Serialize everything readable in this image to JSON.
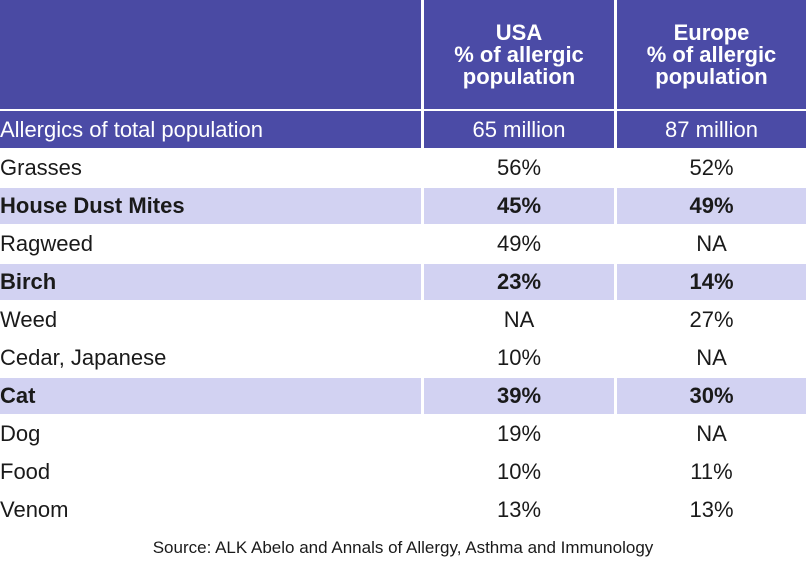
{
  "table": {
    "header": {
      "usa_line1": "USA",
      "usa_line2": "% of allergic",
      "usa_line3": "population",
      "europe_line1": "Europe",
      "europe_line2": "% of allergic",
      "europe_line3": "population"
    },
    "total_row": {
      "label": "Allergics of total population",
      "usa": "65 million",
      "europe": "87 million"
    },
    "rows": [
      {
        "label": "Grasses",
        "usa": "56%",
        "europe": "52%",
        "highlight": false
      },
      {
        "label": "House Dust Mites",
        "usa": "45%",
        "europe": "49%",
        "highlight": true
      },
      {
        "label": "Ragweed",
        "usa": "49%",
        "europe": "NA",
        "highlight": false
      },
      {
        "label": "Birch",
        "usa": "23%",
        "europe": "14%",
        "highlight": true
      },
      {
        "label": "Weed",
        "usa": "NA",
        "europe": "27%",
        "highlight": false
      },
      {
        "label": "Cedar, Japanese",
        "usa": "10%",
        "europe": "NA",
        "highlight": false
      },
      {
        "label": "Cat",
        "usa": "39%",
        "europe": "30%",
        "highlight": true
      },
      {
        "label": "Dog",
        "usa": "19%",
        "europe": "NA",
        "highlight": false
      },
      {
        "label": "Food",
        "usa": "10%",
        "europe": "11%",
        "highlight": false
      },
      {
        "label": "Venom",
        "usa": "13%",
        "europe": "13%",
        "highlight": false
      }
    ],
    "source": "Source: ALK Abelo and Annals of Allergy, Asthma and Immunology"
  },
  "colors": {
    "header_bg": "#4b4ba6",
    "highlight_bg": "#d2d2f2"
  },
  "chart_data": {
    "type": "table",
    "columns": [
      "",
      "USA % of allergic population",
      "Europe % of allergic population"
    ],
    "rows": [
      [
        "Allergics of total population",
        "65 million",
        "87 million"
      ],
      [
        "Grasses",
        "56%",
        "52%"
      ],
      [
        "House Dust Mites",
        "45%",
        "49%"
      ],
      [
        "Ragweed",
        "49%",
        "NA"
      ],
      [
        "Birch",
        "23%",
        "14%"
      ],
      [
        "Weed",
        "NA",
        "27%"
      ],
      [
        "Cedar, Japanese",
        "10%",
        "NA"
      ],
      [
        "Cat",
        "39%",
        "30%"
      ],
      [
        "Dog",
        "19%",
        "NA"
      ],
      [
        "Food",
        "10%",
        "11%"
      ],
      [
        "Venom",
        "13%",
        "13%"
      ]
    ]
  }
}
